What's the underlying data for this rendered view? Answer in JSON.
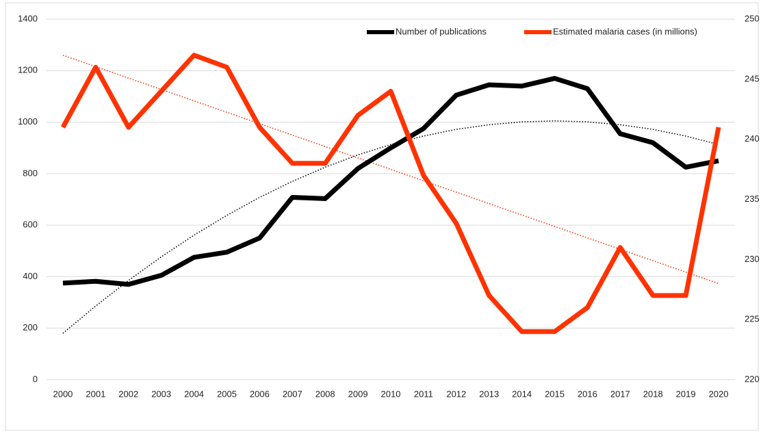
{
  "chart_data": {
    "type": "line",
    "categories": [
      "2000",
      "2001",
      "2002",
      "2003",
      "2004",
      "2005",
      "2006",
      "2007",
      "2008",
      "2009",
      "2010",
      "2011",
      "2012",
      "2013",
      "2014",
      "2015",
      "2016",
      "2017",
      "2018",
      "2019",
      "2020"
    ],
    "series": [
      {
        "name": "Number of publications",
        "color": "#000000",
        "axis": "y",
        "values": [
          375,
          382,
          370,
          405,
          475,
          495,
          550,
          708,
          703,
          820,
          900,
          975,
          1105,
          1145,
          1140,
          1170,
          1130,
          955,
          920,
          825,
          850
        ]
      },
      {
        "name": "Estimated malaria cases (in millions)",
        "color": "#ff3300",
        "axis": "y2",
        "values": [
          241,
          246,
          241,
          244,
          247,
          246,
          241,
          238,
          238,
          242,
          244,
          237,
          233,
          227,
          224,
          224,
          226,
          231,
          227,
          227,
          241
        ]
      }
    ],
    "trendlines": [
      {
        "color": "#000000",
        "axis": "y",
        "values": [
          180,
          286,
          385,
          477,
          561,
          638,
          708,
          770,
          825,
          873,
          913,
          946,
          972,
          990,
          1001,
          1005,
          1001,
          990,
          972,
          946,
          913
        ]
      },
      {
        "color": "#ff3300",
        "axis": "y2",
        "values": [
          247,
          246.05,
          245.1,
          244.15,
          243.2,
          242.25,
          241.3,
          240.35,
          239.4,
          238.45,
          237.5,
          236.55,
          235.6,
          234.65,
          233.7,
          232.75,
          231.8,
          230.85,
          229.9,
          228.95,
          228
        ]
      }
    ],
    "ylim": [
      0,
      1400
    ],
    "yticks": [
      0,
      200,
      400,
      600,
      800,
      1000,
      1200,
      1400
    ],
    "y2lim": [
      220,
      250
    ],
    "y2ticks": [
      220,
      225,
      230,
      235,
      240,
      245,
      250
    ],
    "grid": true,
    "legend": "top-right"
  }
}
